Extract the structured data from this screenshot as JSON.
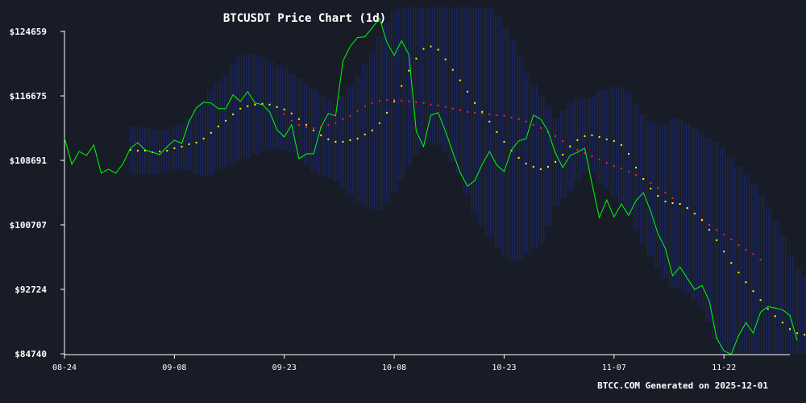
{
  "chart_data": {
    "type": "line",
    "title": "BTCUSDT Price Chart (1d)",
    "footer": "BTCC.COM Generated on 2025-12-01",
    "xlabel": "",
    "ylabel": "",
    "x_range": [
      "2025-08-24",
      "2025-12-01"
    ],
    "ylim": [
      84740,
      124659
    ],
    "y_ticks": [
      {
        "value": 124659,
        "label": "$124659"
      },
      {
        "value": 116675,
        "label": "$116675"
      },
      {
        "value": 108691,
        "label": "$108691"
      },
      {
        "value": 100707,
        "label": "$100707"
      },
      {
        "value": 92724,
        "label": "$92724"
      },
      {
        "value": 84740,
        "label": "$84740"
      }
    ],
    "x_ticks": [
      {
        "date": "2025-08-24",
        "label": "08-24"
      },
      {
        "date": "2025-09-08",
        "label": "09-08"
      },
      {
        "date": "2025-09-23",
        "label": "09-23"
      },
      {
        "date": "2025-10-08",
        "label": "10-08"
      },
      {
        "date": "2025-10-23",
        "label": "10-23"
      },
      {
        "date": "2025-11-07",
        "label": "11-07"
      },
      {
        "date": "2025-11-22",
        "label": "11-22"
      }
    ],
    "grid": false,
    "legend": "none",
    "colors": {
      "background": "#181c27",
      "price": "#00ff00",
      "ma_short": "#ffff00",
      "ma_long": "#ff2020",
      "band": "#1c2a7a"
    },
    "series": [
      {
        "key": "price",
        "style": "line",
        "start_date": "2025-08-24",
        "values": [
          111500,
          108200,
          109800,
          109300,
          110600,
          107100,
          107600,
          107100,
          108300,
          110200,
          110900,
          110000,
          109700,
          109400,
          110400,
          111200,
          110800,
          113500,
          115200,
          115900,
          115800,
          115100,
          115100,
          116800,
          116000,
          117200,
          115800,
          115600,
          114700,
          112500,
          111600,
          113100,
          108900,
          109500,
          109500,
          112800,
          114500,
          114200,
          121000,
          122800,
          123900,
          124000,
          125100,
          126300,
          123300,
          121700,
          123500,
          121800,
          112300,
          110400,
          114300,
          114600,
          112300,
          109700,
          107200,
          105500,
          106200,
          108200,
          109800,
          108100,
          107300,
          110000,
          111100,
          111400,
          114300,
          113800,
          112300,
          109600,
          107800,
          109300,
          109700,
          110200,
          105800,
          101600,
          103800,
          101700,
          103300,
          101900,
          103700,
          104700,
          102400,
          99600,
          97800,
          94400,
          95500,
          94100,
          92700,
          93200,
          91300,
          86700,
          85100,
          84700,
          87000,
          88600,
          87300,
          89900,
          90600,
          90400,
          90200,
          89500,
          86400
        ]
      },
      {
        "key": "ma_short",
        "style": "dots",
        "start_date": "2025-09-02",
        "values": [
          110000,
          109900,
          109900,
          109700,
          109800,
          109900,
          110200,
          110400,
          110700,
          110900,
          111400,
          112100,
          112900,
          113600,
          114400,
          115100,
          115400,
          115600,
          115700,
          115600,
          115300,
          115000,
          114500,
          113800,
          113100,
          112400,
          111800,
          111300,
          111000,
          111000,
          111200,
          111400,
          111900,
          112400,
          113300,
          114600,
          116000,
          117900,
          119800,
          121300,
          122500,
          122800,
          122400,
          121200,
          119900,
          118600,
          117200,
          115800,
          114700,
          113500,
          112200,
          111000,
          109900,
          109000,
          108300,
          107900,
          107600,
          107900,
          108500,
          109400,
          110400,
          111200,
          111700,
          111800,
          111600,
          111300,
          111100,
          110600,
          109500,
          107800,
          106400,
          105200,
          104300,
          103600,
          103400,
          103300,
          102800,
          102100,
          101300,
          100100,
          98800,
          97400,
          96000,
          94800,
          93600,
          92500,
          91400,
          90300,
          89400,
          88600,
          87800,
          87300,
          87100,
          87400,
          87900,
          88600,
          89100,
          89600,
          89100
        ]
      },
      {
        "key": "ma_long",
        "style": "dots",
        "start_date": "2025-09-23",
        "values": [
          114400,
          113600,
          113100,
          112800,
          112700,
          112800,
          113100,
          113300,
          113800,
          114200,
          114800,
          115400,
          115800,
          116100,
          116200,
          116200,
          116100,
          116000,
          115900,
          115800,
          115600,
          115500,
          115300,
          115100,
          114900,
          114700,
          114600,
          114500,
          114400,
          114300,
          114200,
          114000,
          113800,
          113500,
          113100,
          112700,
          112200,
          111700,
          111100,
          110500,
          110000,
          109600,
          109200,
          108800,
          108400,
          108000,
          107700,
          107300,
          106900,
          106400,
          105900,
          105300,
          104700,
          104000,
          103300,
          102700,
          102100,
          101400,
          100700,
          100100,
          99500,
          98900,
          98200,
          97600,
          97100,
          96400
        ]
      }
    ]
  }
}
